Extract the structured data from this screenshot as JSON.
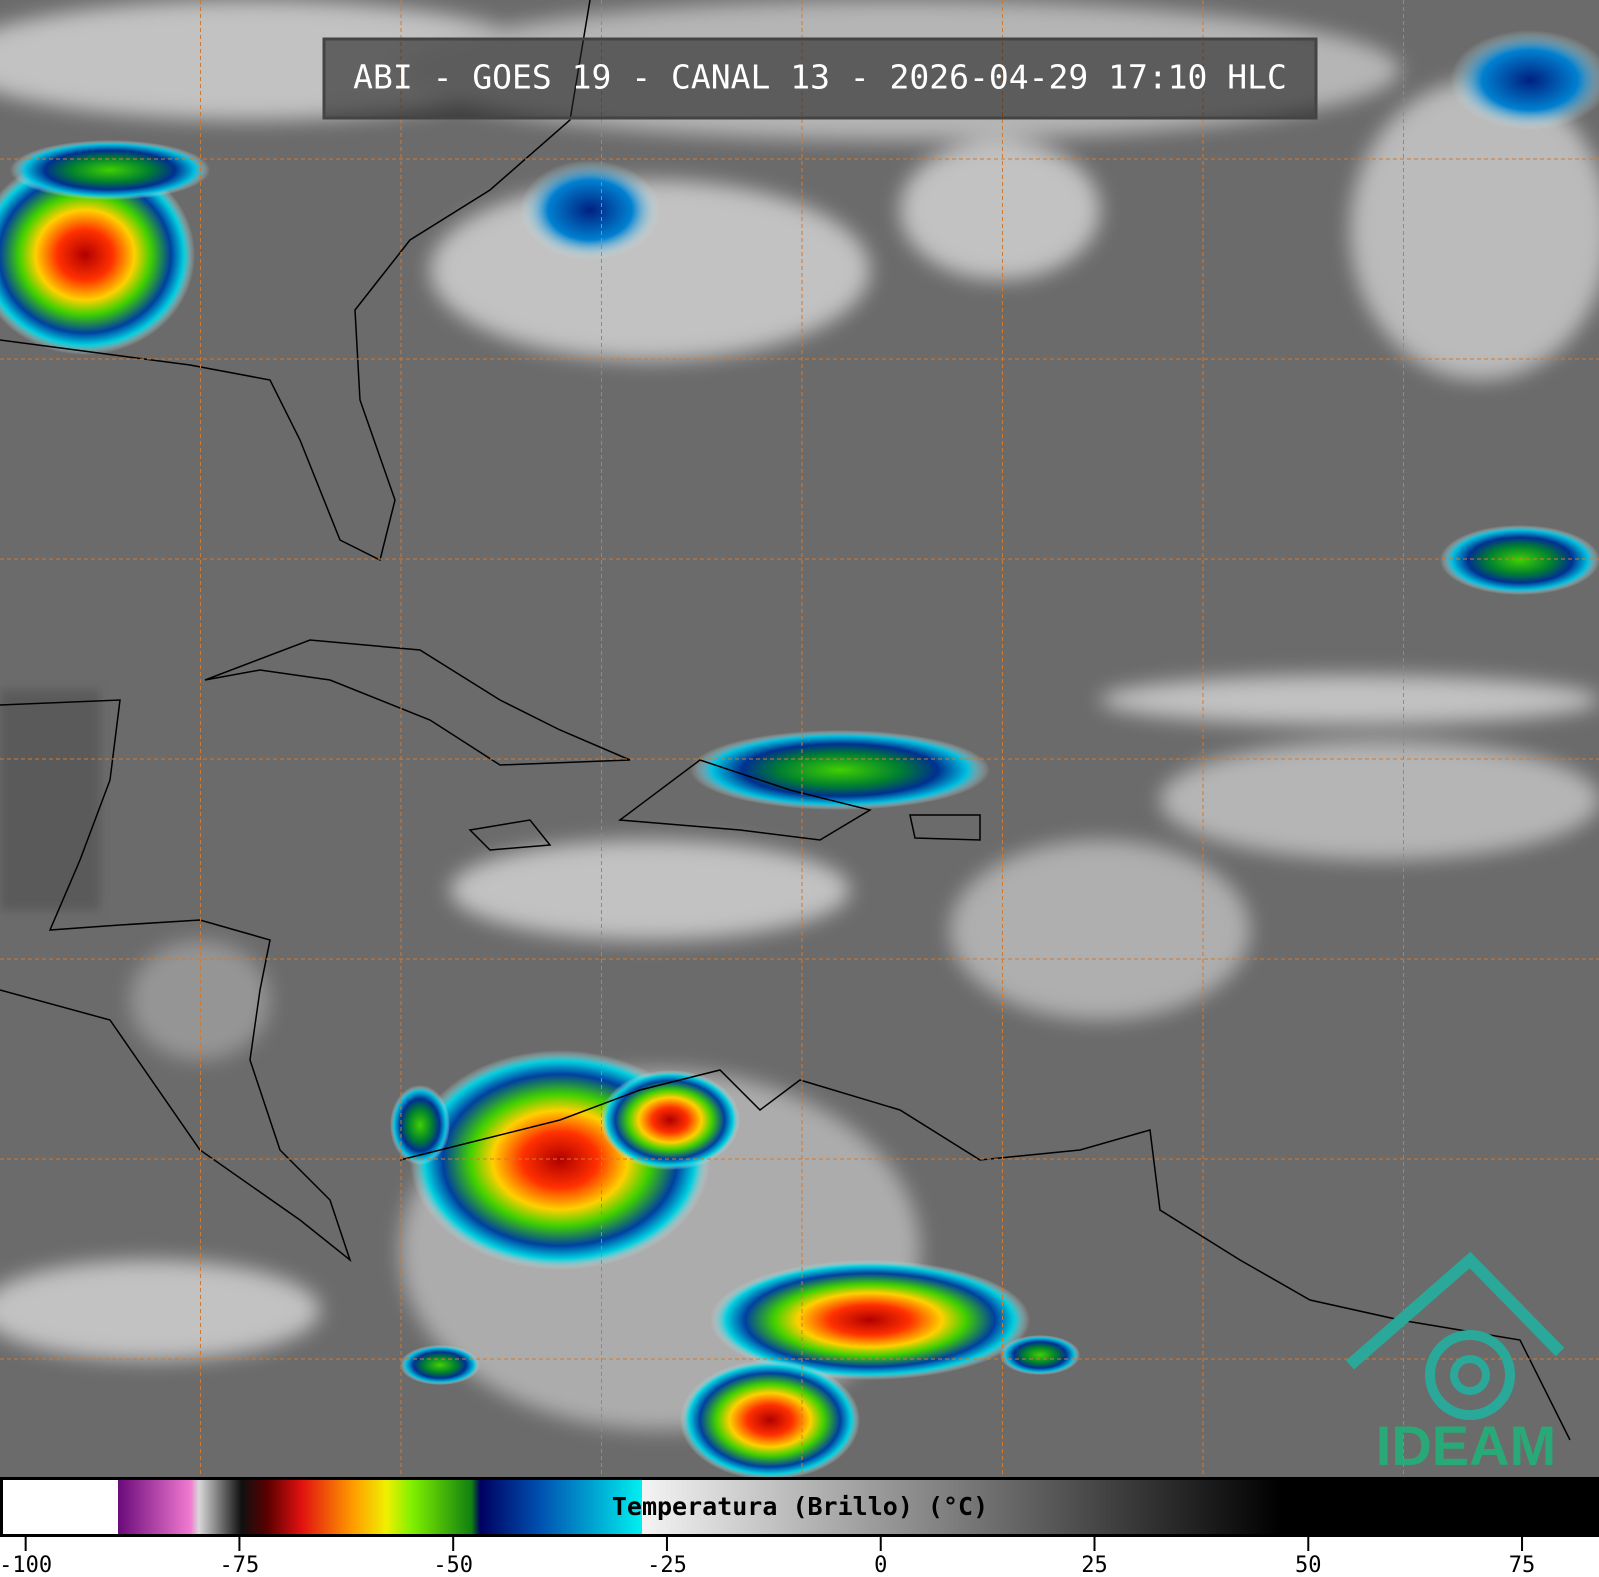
{
  "header": {
    "title": "ABI - GOES 19 - CANAL 13 - 2026-04-29 17:10 HLC"
  },
  "colorbar": {
    "label": "Temperatura (Brillo) (°C)",
    "lim": [
      -103,
      84
    ],
    "ticks": [
      -100,
      -75,
      -50,
      -25,
      0,
      25,
      50,
      75
    ],
    "stops": [
      {
        "value": -103,
        "color": "#ffffff"
      },
      {
        "value": -89.5,
        "color": "#ffffff"
      },
      {
        "value": -89.5,
        "color": "#6a0a7a"
      },
      {
        "value": -81,
        "color": "#f07ad0"
      },
      {
        "value": -80,
        "color": "#d8d8d8"
      },
      {
        "value": -75,
        "color": "#101010"
      },
      {
        "value": -72,
        "color": "#5a0000"
      },
      {
        "value": -68,
        "color": "#e01010"
      },
      {
        "value": -62,
        "color": "#ff9a00"
      },
      {
        "value": -58,
        "color": "#f0f000"
      },
      {
        "value": -55,
        "color": "#80f000"
      },
      {
        "value": -48,
        "color": "#108010"
      },
      {
        "value": -47,
        "color": "#000060"
      },
      {
        "value": -40,
        "color": "#0050b0"
      },
      {
        "value": -28,
        "color": "#00f0f0"
      },
      {
        "value": -28,
        "color": "#f4f4f4"
      },
      {
        "value": 47,
        "color": "#000000"
      },
      {
        "value": 84,
        "color": "#000000"
      }
    ]
  },
  "logo": {
    "text": "IDEAM"
  }
}
